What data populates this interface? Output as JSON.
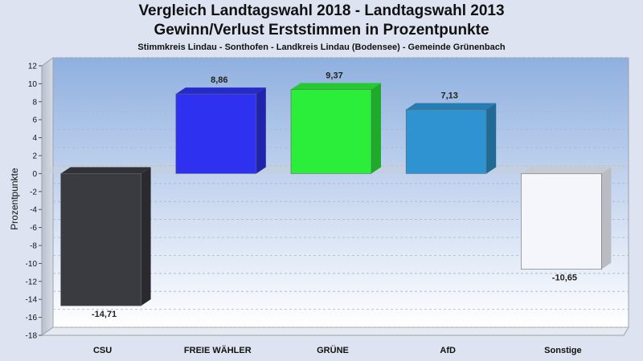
{
  "chart_data": {
    "type": "bar",
    "title": "Vergleich Landtagswahl 2018 - Landtagswahl 2013",
    "subtitle": "Gewinn/Verlust Erststimmen in Prozentpunkte",
    "subtitle2": "Stimmkreis Lindau - Sonthofen - Landkreis Lindau (Bodensee) - Gemeinde Grünenbach",
    "ylabel": "Prozentpunkte",
    "xlabel": "",
    "ylim": [
      -18,
      12
    ],
    "yticks": [
      12,
      10,
      8,
      6,
      4,
      2,
      0,
      -2,
      -4,
      -6,
      -8,
      -10,
      -12,
      -14,
      -16,
      -18
    ],
    "categories": [
      "CSU",
      "FREIE WÄHLER",
      "GRÜNE",
      "AfD",
      "Sonstige"
    ],
    "values": [
      -14.71,
      8.86,
      9.37,
      7.13,
      -10.65
    ],
    "value_labels": [
      "-14,71",
      "8,86",
      "9,37",
      "7,13",
      "-10,65"
    ],
    "colors": [
      "#3a3b40",
      "#2e31ef",
      "#2bee3b",
      "#2e93d0",
      "#f4f6fb"
    ],
    "grid": true,
    "legend": "none"
  }
}
